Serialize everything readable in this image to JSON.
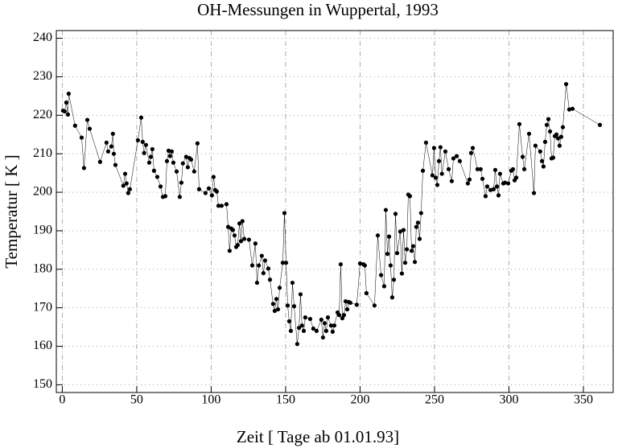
{
  "chart_data": {
    "type": "line",
    "title": "OH-Messungen in Wuppertal, 1993",
    "xlabel": "Zeit [ Tage ab 01.01.93]",
    "ylabel": "Temperatur [ K ]",
    "xlim": [
      -4,
      370
    ],
    "ylim": [
      148,
      242
    ],
    "xticks": [
      0,
      50,
      100,
      150,
      200,
      250,
      300,
      350
    ],
    "yticks": [
      150,
      160,
      170,
      180,
      190,
      200,
      210,
      220,
      230,
      240
    ],
    "grid": true,
    "color": "#000000",
    "x": [
      0.5,
      1.6,
      2.7,
      3.8,
      4.3,
      8.6,
      13,
      14.6,
      16.8,
      18.4,
      25.4,
      29.7,
      30.8,
      33,
      34,
      34.6,
      35.7,
      41,
      42.2,
      43.2,
      44.3,
      45.4,
      50.8,
      53,
      54,
      55,
      56.2,
      58.4,
      59.5,
      60.5,
      61.6,
      63.8,
      66,
      67.6,
      69.2,
      70.3,
      71.4,
      72.4,
      73.5,
      74.6,
      76.8,
      78.9,
      80,
      81,
      83.2,
      84.3,
      85.4,
      86.5,
      88.6,
      90.8,
      91.9,
      96.2,
      98.4,
      100.5,
      101.6,
      102.7,
      103.8,
      104.9,
      107,
      110.3,
      111.4,
      112.4,
      113.5,
      114.6,
      115.7,
      116.8,
      117.8,
      119,
      120,
      121,
      122.2,
      125.4,
      127.6,
      129.7,
      130.8,
      132,
      134,
      135.1,
      136.2,
      138.4,
      139.5,
      141.6,
      142.7,
      143.8,
      144.9,
      146,
      148.1,
      149.2,
      150.3,
      151.4,
      152.4,
      153.5,
      154.6,
      155.7,
      157.8,
      159,
      160,
      161,
      162.2,
      163.2,
      166.5,
      168.6,
      170.8,
      174,
      175.1,
      176.2,
      177.3,
      178.4,
      180.5,
      181.6,
      182.7,
      184.9,
      186,
      187,
      188.1,
      189.2,
      190.3,
      191.4,
      192.4,
      193.5,
      197.8,
      200,
      202.2,
      203.2,
      204.3,
      209.7,
      211.9,
      214.1,
      216.2,
      217.3,
      218.4,
      219.5,
      220.5,
      221.6,
      222.7,
      223.8,
      224.9,
      227,
      228.1,
      229.2,
      230.3,
      231.4,
      232.4,
      233.5,
      234.6,
      235.7,
      236.8,
      237.8,
      238.9,
      240,
      241,
      242.2,
      244.3,
      248.6,
      249.7,
      250.8,
      251.9,
      253,
      254,
      255,
      257.3,
      259.5,
      261.6,
      262.7,
      264.9,
      267,
      272.4,
      273.5,
      274.6,
      275.7,
      278.9,
      281,
      282.2,
      284.3,
      285.4,
      287.6,
      289.7,
      290.8,
      291.9,
      293,
      294,
      296.2,
      297.3,
      299.5,
      301.6,
      302.7,
      303.8,
      304.9,
      307,
      309.2,
      310.3,
      313.5,
      316.8,
      317.8,
      321,
      322.2,
      323.2,
      324.3,
      325.4,
      326.5,
      327.6,
      328.6,
      329.7,
      330.8,
      331.9,
      333,
      334,
      335.1,
      336.2,
      338.4,
      340.5,
      342.7,
      361.1
    ],
    "values": [
      221.2,
      221,
      223.3,
      220.2,
      225.6,
      217.3,
      214.2,
      206.3,
      218.8,
      216.5,
      207.9,
      212.9,
      210.6,
      211.9,
      215.2,
      210,
      207.1,
      201.7,
      204.8,
      202.3,
      199.8,
      200.8,
      213.5,
      219.4,
      213.1,
      210.2,
      212.3,
      207.7,
      209.2,
      211.2,
      205.6,
      204,
      201.5,
      198.8,
      199,
      208.1,
      210.8,
      209.4,
      210.6,
      207.7,
      205.4,
      198.8,
      202.5,
      207.5,
      209.2,
      206.5,
      208.9,
      208.5,
      205.4,
      212.7,
      200.8,
      199.8,
      201,
      199.2,
      204,
      200.6,
      200.2,
      196.5,
      196.5,
      196.9,
      191,
      184.8,
      190.6,
      190.2,
      188.8,
      185.8,
      186.3,
      191.9,
      187.3,
      192.5,
      187.9,
      187.7,
      181,
      186.7,
      176.5,
      181,
      183.5,
      179,
      182.3,
      180.2,
      177.3,
      171,
      169.2,
      172.3,
      169.6,
      175.2,
      181.7,
      194.6,
      181.7,
      170.6,
      166.5,
      164,
      176.5,
      170.4,
      160.6,
      164.8,
      173.5,
      165.4,
      164,
      167.5,
      167.1,
      164.6,
      164,
      166.9,
      162.3,
      166,
      164,
      167.5,
      165.4,
      163.8,
      165.4,
      168.8,
      168.1,
      181.3,
      167.3,
      168.1,
      171.7,
      169.6,
      171.5,
      171.3,
      170.8,
      181.5,
      181.3,
      181,
      173.8,
      170.6,
      188.8,
      178.5,
      175.6,
      195.4,
      184,
      188.5,
      181,
      172.7,
      177.3,
      194.4,
      184.2,
      189.8,
      178.9,
      190.2,
      181.7,
      185.2,
      199.4,
      199,
      184.8,
      186,
      181.9,
      191,
      192.1,
      187.9,
      194.6,
      205.6,
      212.9,
      204.4,
      211.5,
      203.8,
      201.9,
      208.1,
      211.7,
      204.8,
      210.6,
      206,
      202.9,
      208.8,
      209.4,
      208.1,
      202.3,
      203.3,
      210.2,
      211.5,
      206,
      206,
      203.5,
      199,
      201.5,
      200.6,
      200.8,
      205.8,
      201.5,
      199.2,
      204.8,
      202.3,
      202.5,
      202.3,
      205.6,
      206,
      203.1,
      203.8,
      217.7,
      209.2,
      206,
      215.2,
      199.8,
      212.1,
      210.6,
      208.1,
      206.7,
      213.1,
      217.5,
      219,
      215.8,
      208.8,
      209,
      214.6,
      215,
      214,
      212.1,
      214.4,
      216.9,
      228.1,
      221.5,
      221.7,
      217.5
    ]
  }
}
